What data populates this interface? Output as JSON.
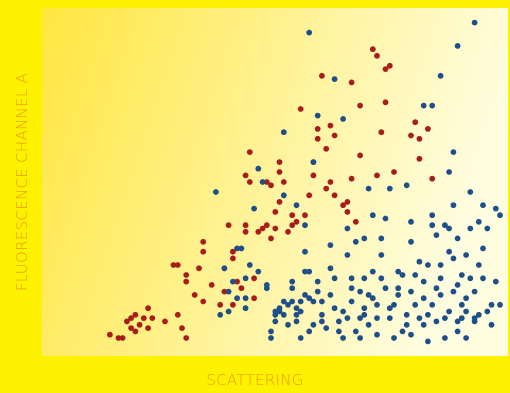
{
  "chart_data": {
    "type": "scatter",
    "title": "",
    "xlabel": "SCATTERING",
    "ylabel": "FLUORESCENCE CHANNEL A",
    "xlim": [
      0,
      100
    ],
    "ylim": [
      0,
      100
    ],
    "grid": false,
    "legend": "none",
    "background": {
      "from": "#ffe640",
      "to": "#fffde0"
    },
    "series": [
      {
        "color": "#a81c1c",
        "points": [
          [
            8,
            4
          ],
          [
            10,
            3
          ],
          [
            11,
            3
          ],
          [
            12,
            8
          ],
          [
            13,
            6
          ],
          [
            13,
            9
          ],
          [
            14,
            5
          ],
          [
            14,
            10
          ],
          [
            15,
            7
          ],
          [
            16,
            9
          ],
          [
            17,
            6
          ],
          [
            17,
            12
          ],
          [
            18,
            9
          ],
          [
            21,
            8
          ],
          [
            23,
            25
          ],
          [
            24,
            10
          ],
          [
            24,
            25
          ],
          [
            25,
            6
          ],
          [
            26,
            3
          ],
          [
            26,
            20
          ],
          [
            26,
            22
          ],
          [
            28,
            16
          ],
          [
            29,
            24
          ],
          [
            30,
            14
          ],
          [
            30,
            29
          ],
          [
            30,
            32
          ],
          [
            32,
            19
          ],
          [
            34,
            13
          ],
          [
            35,
            17
          ],
          [
            35,
            24
          ],
          [
            36,
            37
          ],
          [
            37,
            27
          ],
          [
            37,
            13
          ],
          [
            37,
            29
          ],
          [
            38,
            20
          ],
          [
            39,
            18
          ],
          [
            40,
            37
          ],
          [
            40,
            35
          ],
          [
            40,
            52
          ],
          [
            41,
            50
          ],
          [
            41,
            59
          ],
          [
            42,
            21
          ],
          [
            42,
            15
          ],
          [
            43,
            35
          ],
          [
            44,
            36
          ],
          [
            45,
            50
          ],
          [
            45,
            37
          ],
          [
            46,
            49
          ],
          [
            46,
            33
          ],
          [
            47,
            41
          ],
          [
            47,
            36
          ],
          [
            48,
            44
          ],
          [
            48,
            56
          ],
          [
            48,
            53
          ],
          [
            49,
            50
          ],
          [
            50,
            35
          ],
          [
            51,
            40
          ],
          [
            51,
            37
          ],
          [
            52,
            38
          ],
          [
            53,
            72
          ],
          [
            54,
            40
          ],
          [
            55,
            46
          ],
          [
            56,
            56
          ],
          [
            56,
            52
          ],
          [
            57,
            66
          ],
          [
            57,
            63
          ],
          [
            58,
            82
          ],
          [
            59,
            48
          ],
          [
            59,
            60
          ],
          [
            60,
            67
          ],
          [
            60,
            50
          ],
          [
            61,
            64
          ],
          [
            61,
            46
          ],
          [
            63,
            43
          ],
          [
            64,
            41
          ],
          [
            64,
            44
          ],
          [
            65,
            80
          ],
          [
            65,
            51
          ],
          [
            66,
            38
          ],
          [
            67,
            73
          ],
          [
            67,
            58
          ],
          [
            70,
            90
          ],
          [
            71,
            52
          ],
          [
            71,
            88
          ],
          [
            72,
            65
          ],
          [
            73,
            84
          ],
          [
            73,
            74
          ],
          [
            74,
            85
          ],
          [
            75,
            53
          ],
          [
            79,
            64
          ],
          [
            80,
            68
          ],
          [
            81,
            63
          ],
          [
            81,
            57
          ],
          [
            83,
            66
          ],
          [
            84,
            51
          ]
        ]
      },
      {
        "color": "#1f4f8a",
        "points": [
          [
            33,
            47
          ],
          [
            34,
            10
          ],
          [
            35,
            24
          ],
          [
            36,
            17
          ],
          [
            36,
            11
          ],
          [
            37,
            20
          ],
          [
            38,
            30
          ],
          [
            38,
            15
          ],
          [
            39,
            30
          ],
          [
            40,
            21
          ],
          [
            40,
            15
          ],
          [
            40,
            12
          ],
          [
            41,
            25
          ],
          [
            42,
            42
          ],
          [
            43,
            54
          ],
          [
            43,
            23
          ],
          [
            45,
            18
          ],
          [
            45,
            19
          ],
          [
            46,
            3
          ],
          [
            46,
            5
          ],
          [
            47,
            10
          ],
          [
            47,
            11
          ],
          [
            47,
            8
          ],
          [
            48,
            11
          ],
          [
            48,
            12
          ],
          [
            49,
            14
          ],
          [
            49,
            10
          ],
          [
            50,
            7
          ],
          [
            50,
            13
          ],
          [
            51,
            14
          ],
          [
            51,
            18
          ],
          [
            51,
            20
          ],
          [
            52,
            12
          ],
          [
            52,
            10
          ],
          [
            52,
            8
          ],
          [
            53,
            3
          ],
          [
            53,
            14
          ],
          [
            53,
            11
          ],
          [
            54,
            29
          ],
          [
            54,
            23
          ],
          [
            54,
            16
          ],
          [
            54,
            37
          ],
          [
            55,
            15
          ],
          [
            55,
            23
          ],
          [
            55,
            5
          ],
          [
            56,
            14
          ],
          [
            56,
            7
          ],
          [
            57,
            17
          ],
          [
            57,
            20
          ],
          [
            58,
            8
          ],
          [
            58,
            10
          ],
          [
            58,
            14
          ],
          [
            59,
            6
          ],
          [
            60,
            16
          ],
          [
            60,
            24
          ],
          [
            60,
            31
          ],
          [
            61,
            12
          ],
          [
            61,
            21
          ],
          [
            62,
            8
          ],
          [
            62,
            5
          ],
          [
            63,
            11
          ],
          [
            63,
            3
          ],
          [
            64,
            9
          ],
          [
            64,
            28
          ],
          [
            64,
            36
          ],
          [
            65,
            18
          ],
          [
            65,
            21
          ],
          [
            65,
            14
          ],
          [
            66,
            32
          ],
          [
            66,
            5
          ],
          [
            67,
            9
          ],
          [
            67,
            17
          ],
          [
            67,
            3
          ],
          [
            68,
            12
          ],
          [
            68,
            10
          ],
          [
            68,
            21
          ],
          [
            68,
            33
          ],
          [
            69,
            48
          ],
          [
            69,
            16
          ],
          [
            69,
            7
          ],
          [
            70,
            40
          ],
          [
            70,
            23
          ],
          [
            70,
            15
          ],
          [
            71,
            9
          ],
          [
            71,
            4
          ],
          [
            71,
            13
          ],
          [
            72,
            28
          ],
          [
            72,
            21
          ],
          [
            72,
            33
          ],
          [
            73,
            39
          ],
          [
            73,
            18
          ],
          [
            74,
            48
          ],
          [
            74,
            12
          ],
          [
            74,
            9
          ],
          [
            75,
            13
          ],
          [
            75,
            3
          ],
          [
            76,
            23
          ],
          [
            76,
            18
          ],
          [
            76,
            16
          ],
          [
            77,
            5
          ],
          [
            77,
            22
          ],
          [
            78,
            10
          ],
          [
            78,
            49
          ],
          [
            78,
            7
          ],
          [
            79,
            17
          ],
          [
            79,
            4
          ],
          [
            79,
            32
          ],
          [
            79,
            38
          ],
          [
            80,
            22
          ],
          [
            80,
            13
          ],
          [
            81,
            9
          ],
          [
            81,
            26
          ],
          [
            82,
            20
          ],
          [
            82,
            15
          ],
          [
            82,
            7
          ],
          [
            83,
            10
          ],
          [
            83,
            25
          ],
          [
            83,
            2
          ],
          [
            84,
            40
          ],
          [
            84,
            13
          ],
          [
            84,
            37
          ],
          [
            85,
            18
          ],
          [
            85,
            8
          ],
          [
            85,
            34
          ],
          [
            86,
            25
          ],
          [
            86,
            21
          ],
          [
            86,
            16
          ],
          [
            87,
            9
          ],
          [
            87,
            3
          ],
          [
            87,
            37
          ],
          [
            88,
            36
          ],
          [
            88,
            11
          ],
          [
            88,
            29
          ],
          [
            89,
            17
          ],
          [
            89,
            27
          ],
          [
            89,
            43
          ],
          [
            90,
            8
          ],
          [
            90,
            5
          ],
          [
            90,
            19
          ],
          [
            90,
            33
          ],
          [
            91,
            22
          ],
          [
            91,
            13
          ],
          [
            91,
            9
          ],
          [
            92,
            3
          ],
          [
            92,
            15
          ],
          [
            92,
            11
          ],
          [
            92,
            28
          ],
          [
            93,
            36
          ],
          [
            93,
            21
          ],
          [
            93,
            47
          ],
          [
            94,
            17
          ],
          [
            94,
            9
          ],
          [
            94,
            8
          ],
          [
            95,
            38
          ],
          [
            95,
            25
          ],
          [
            95,
            10
          ],
          [
            96,
            43
          ],
          [
            96,
            21
          ],
          [
            96,
            30
          ],
          [
            97,
            36
          ],
          [
            97,
            11
          ],
          [
            98,
            13
          ],
          [
            98,
            7
          ],
          [
            99,
            20
          ],
          [
            99,
            42
          ],
          [
            100,
            13
          ],
          [
            100,
            40
          ],
          [
            82,
            73
          ],
          [
            84,
            73
          ],
          [
            86,
            82
          ],
          [
            89,
            59
          ],
          [
            88,
            53
          ],
          [
            90,
            91
          ],
          [
            94,
            98
          ],
          [
            55,
            95
          ],
          [
            61,
            81
          ],
          [
            57,
            70
          ],
          [
            49,
            65
          ],
          [
            63,
            69
          ],
          [
            56,
            56
          ],
          [
            49,
            46
          ],
          [
            52,
            43
          ],
          [
            44,
            50
          ]
        ]
      }
    ]
  }
}
